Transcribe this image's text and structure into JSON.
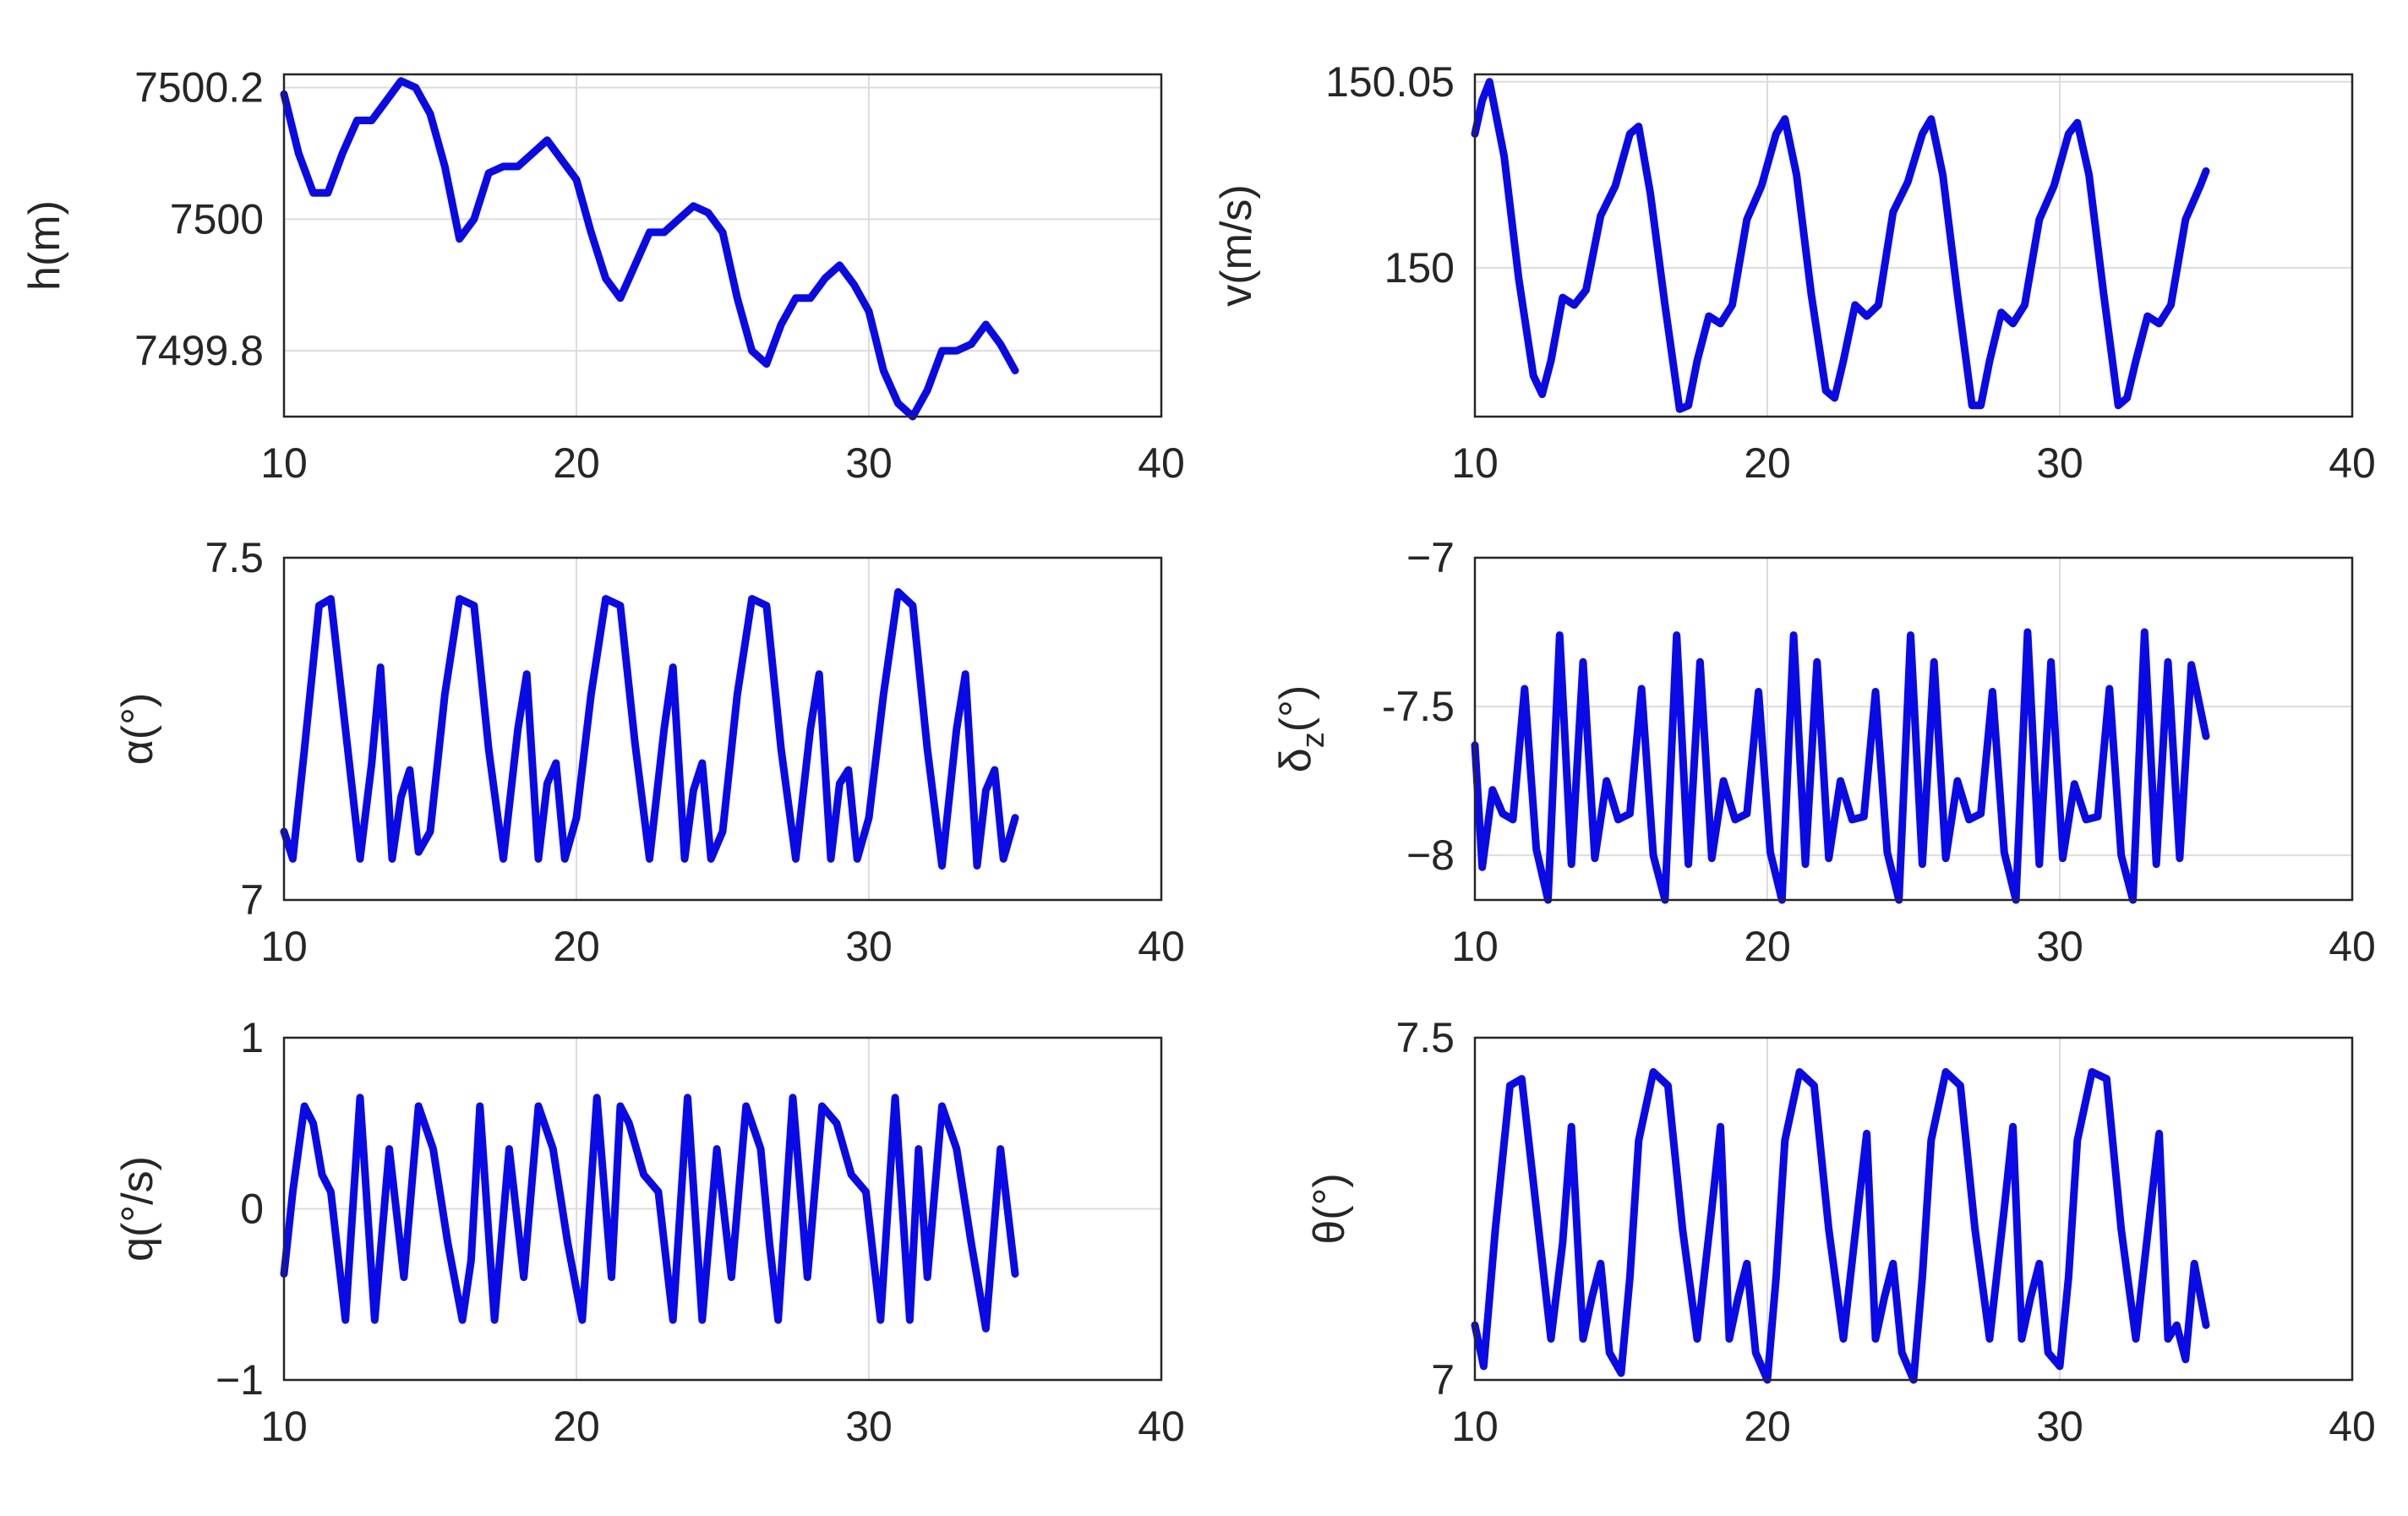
{
  "chart_data": [
    {
      "type": "line",
      "ylabel": "h(m)",
      "xlim": [
        10,
        40
      ],
      "ylim": [
        7499.7,
        7500.22
      ],
      "xticks": [
        "10",
        "20",
        "30",
        "40"
      ],
      "yticks": [
        "7499.8",
        "7500",
        "7500.2"
      ],
      "ytick_values": [
        7499.8,
        7500.0,
        7500.2
      ],
      "x": [
        10,
        10.5,
        11,
        11.5,
        12,
        12.5,
        13,
        13.5,
        14,
        14.5,
        15,
        15.5,
        16,
        16.5,
        17,
        17.5,
        18,
        18.5,
        19,
        19.5,
        20,
        20.5,
        21,
        21.5,
        22,
        22.5,
        23,
        23.5,
        24,
        24.5,
        25,
        25.5,
        26,
        26.5,
        27,
        27.5,
        28,
        28.5,
        29,
        29.5,
        30,
        30.5,
        31,
        31.5,
        32,
        32.5,
        33,
        33.5,
        34,
        34.5,
        35
      ],
      "values": [
        7500.19,
        7500.1,
        7500.04,
        7500.04,
        7500.1,
        7500.15,
        7500.15,
        7500.18,
        7500.21,
        7500.2,
        7500.16,
        7500.08,
        7499.97,
        7500.0,
        7500.07,
        7500.08,
        7500.08,
        7500.1,
        7500.12,
        7500.09,
        7500.06,
        7499.98,
        7499.91,
        7499.88,
        7499.93,
        7499.98,
        7499.98,
        7500.0,
        7500.02,
        7500.01,
        7499.98,
        7499.88,
        7499.8,
        7499.78,
        7499.84,
        7499.88,
        7499.88,
        7499.91,
        7499.93,
        7499.9,
        7499.86,
        7499.77,
        7499.72,
        7499.7,
        7499.74,
        7499.8,
        7499.8,
        7499.81,
        7499.84,
        7499.81,
        7499.77
      ]
    },
    {
      "type": "line",
      "ylabel": "v(m/s)",
      "xlim": [
        10,
        40
      ],
      "ylim": [
        149.96,
        150.052
      ],
      "xticks": [
        "10",
        "20",
        "30",
        "40"
      ],
      "yticks": [
        "150",
        "150.05"
      ],
      "ytick_values": [
        150.0,
        150.05
      ],
      "x": [
        10,
        10.25,
        10.5,
        11,
        11.5,
        12,
        12.3,
        12.6,
        13,
        13.4,
        13.8,
        14.3,
        14.8,
        15.3,
        15.6,
        16,
        16.5,
        17,
        17.3,
        17.6,
        18,
        18.4,
        18.8,
        19.3,
        19.8,
        20.3,
        20.6,
        21,
        21.5,
        22,
        22.3,
        22.6,
        23,
        23.4,
        23.8,
        24.3,
        24.8,
        25.3,
        25.6,
        26,
        26.5,
        27,
        27.3,
        27.6,
        28,
        28.4,
        28.8,
        29.3,
        29.8,
        30.3,
        30.6,
        31,
        31.5,
        32,
        32.3,
        32.6,
        33,
        33.4,
        33.8,
        34.3,
        34.8,
        35
      ],
      "values": [
        150.036,
        150.045,
        150.05,
        150.03,
        149.997,
        149.971,
        149.966,
        149.975,
        149.992,
        149.99,
        149.994,
        150.014,
        150.022,
        150.036,
        150.038,
        150.02,
        149.99,
        149.962,
        149.963,
        149.975,
        149.987,
        149.985,
        149.99,
        150.013,
        150.022,
        150.036,
        150.04,
        150.025,
        149.993,
        149.967,
        149.965,
        149.975,
        149.99,
        149.987,
        149.99,
        150.015,
        150.023,
        150.036,
        150.04,
        150.025,
        149.993,
        149.963,
        149.963,
        149.975,
        149.988,
        149.985,
        149.99,
        150.013,
        150.022,
        150.036,
        150.039,
        150.025,
        149.993,
        149.963,
        149.965,
        149.975,
        149.987,
        149.985,
        149.99,
        150.013,
        150.022,
        150.026
      ]
    },
    {
      "type": "line",
      "ylabel": "α(°)",
      "xlim": [
        10,
        40
      ],
      "ylim": [
        7,
        7.5
      ],
      "xticks": [
        "10",
        "20",
        "30",
        "40"
      ],
      "yticks": [
        "7",
        "7.5"
      ],
      "ytick_values": [
        7,
        7.5
      ],
      "x": [
        10,
        10.3,
        10.7,
        11.2,
        11.6,
        12.1,
        12.6,
        13,
        13.3,
        13.7,
        14,
        14.3,
        14.6,
        15,
        15.5,
        16,
        16.5,
        17,
        17.5,
        18,
        18.3,
        18.7,
        19,
        19.3,
        19.6,
        20,
        20.5,
        21,
        21.5,
        22,
        22.5,
        23,
        23.3,
        23.7,
        24,
        24.3,
        24.6,
        25,
        25.5,
        26,
        26.5,
        27,
        27.5,
        28,
        28.3,
        28.7,
        29,
        29.3,
        29.6,
        30,
        30.5,
        31,
        31.5,
        32,
        32.5,
        33,
        33.3,
        33.7,
        34,
        34.3,
        34.6,
        35
      ],
      "values": [
        7.1,
        7.06,
        7.22,
        7.43,
        7.44,
        7.25,
        7.06,
        7.2,
        7.34,
        7.06,
        7.15,
        7.19,
        7.07,
        7.1,
        7.3,
        7.44,
        7.43,
        7.22,
        7.06,
        7.25,
        7.33,
        7.06,
        7.17,
        7.2,
        7.06,
        7.12,
        7.3,
        7.44,
        7.43,
        7.23,
        7.06,
        7.25,
        7.34,
        7.06,
        7.16,
        7.2,
        7.06,
        7.1,
        7.3,
        7.44,
        7.43,
        7.22,
        7.06,
        7.25,
        7.33,
        7.06,
        7.17,
        7.19,
        7.06,
        7.12,
        7.3,
        7.45,
        7.43,
        7.22,
        7.05,
        7.25,
        7.33,
        7.05,
        7.16,
        7.19,
        7.06,
        7.12
      ]
    },
    {
      "type": "line",
      "ylabel": "δz(°)",
      "ylabel_main": "δ",
      "ylabel_sub": "z",
      "ylabel_tail": "(°)",
      "xlim": [
        10,
        40
      ],
      "ylim": [
        -8.15,
        -7
      ],
      "xticks": [
        "10",
        "20",
        "30",
        "40"
      ],
      "yticks": [
        "−8",
        "-7.5",
        "−7"
      ],
      "ytick_values": [
        -8,
        -7.5,
        -7
      ],
      "x": [
        10,
        10.25,
        10.6,
        10.95,
        11.3,
        11.7,
        12.1,
        12.5,
        12.9,
        13.3,
        13.7,
        14.1,
        14.5,
        14.9,
        15.3,
        15.7,
        16.1,
        16.5,
        16.9,
        17.3,
        17.7,
        18.1,
        18.5,
        18.9,
        19.3,
        19.7,
        20.1,
        20.5,
        20.9,
        21.3,
        21.7,
        22.1,
        22.5,
        22.9,
        23.3,
        23.7,
        24.1,
        24.5,
        24.9,
        25.3,
        25.7,
        26.1,
        26.5,
        26.9,
        27.3,
        27.7,
        28.1,
        28.5,
        28.9,
        29.3,
        29.7,
        30.1,
        30.5,
        30.9,
        31.3,
        31.7,
        32.1,
        32.5,
        32.9,
        33.3,
        33.7,
        34.1,
        34.5,
        35
      ],
      "values": [
        -7.63,
        -8.04,
        -7.78,
        -7.86,
        -7.88,
        -7.44,
        -7.98,
        -8.15,
        -7.26,
        -8.03,
        -7.35,
        -8.01,
        -7.75,
        -7.88,
        -7.86,
        -7.44,
        -8.0,
        -8.15,
        -7.26,
        -8.03,
        -7.35,
        -8.01,
        -7.75,
        -7.88,
        -7.86,
        -7.45,
        -7.99,
        -8.15,
        -7.26,
        -8.03,
        -7.35,
        -8.01,
        -7.75,
        -7.88,
        -7.87,
        -7.45,
        -7.99,
        -8.15,
        -7.26,
        -8.03,
        -7.35,
        -8.01,
        -7.75,
        -7.88,
        -7.86,
        -7.45,
        -7.99,
        -8.15,
        -7.25,
        -8.03,
        -7.35,
        -8.01,
        -7.76,
        -7.88,
        -7.87,
        -7.44,
        -8.0,
        -8.15,
        -7.25,
        -8.03,
        -7.35,
        -8.01,
        -7.36,
        -7.6
      ]
    },
    {
      "type": "line",
      "ylabel": "q(°/s)",
      "xlim": [
        10,
        40
      ],
      "ylim": [
        -1,
        1
      ],
      "xticks": [
        "10",
        "20",
        "30",
        "40"
      ],
      "yticks": [
        "−1",
        "0",
        "1"
      ],
      "ytick_values": [
        -1,
        0,
        1
      ],
      "x": [
        10,
        10.3,
        10.7,
        11,
        11.3,
        11.6,
        12.1,
        12.6,
        13.1,
        13.6,
        14.1,
        14.6,
        15.1,
        15.6,
        16.1,
        16.4,
        16.7,
        17.2,
        17.7,
        18.2,
        18.7,
        19.2,
        19.7,
        20.2,
        20.7,
        21.2,
        21.5,
        21.8,
        22.3,
        22.8,
        23.3,
        23.8,
        24.3,
        24.8,
        25.3,
        25.8,
        26.3,
        26.6,
        26.9,
        27.4,
        27.9,
        28.4,
        28.9,
        29.4,
        29.9,
        30.4,
        30.9,
        31.4,
        31.7,
        32,
        32.5,
        33,
        33.5,
        34,
        34.5,
        35
      ],
      "values": [
        -0.38,
        0.1,
        0.6,
        0.5,
        0.2,
        0.1,
        -0.65,
        0.65,
        -0.65,
        0.35,
        -0.4,
        0.6,
        0.35,
        -0.2,
        -0.65,
        -0.3,
        0.6,
        -0.65,
        0.35,
        -0.4,
        0.6,
        0.35,
        -0.2,
        -0.65,
        0.65,
        -0.4,
        0.6,
        0.5,
        0.2,
        0.1,
        -0.65,
        0.65,
        -0.65,
        0.35,
        -0.4,
        0.6,
        0.35,
        -0.2,
        -0.65,
        0.65,
        -0.4,
        0.6,
        0.5,
        0.2,
        0.1,
        -0.65,
        0.65,
        -0.65,
        0.35,
        -0.4,
        0.6,
        0.35,
        -0.2,
        -0.7,
        0.35,
        -0.38
      ]
    },
    {
      "type": "line",
      "ylabel": "θ(°)",
      "xlim": [
        10,
        40
      ],
      "ylim": [
        7,
        7.5
      ],
      "xticks": [
        "10",
        "20",
        "30",
        "40"
      ],
      "yticks": [
        "7",
        "7.5"
      ],
      "ytick_values": [
        7,
        7.5
      ],
      "x": [
        10,
        10.3,
        10.7,
        11.2,
        11.6,
        12.1,
        12.6,
        13,
        13.3,
        13.7,
        14,
        14.3,
        14.6,
        15,
        15.3,
        15.6,
        16.1,
        16.6,
        17.1,
        17.6,
        18.1,
        18.4,
        18.7,
        19,
        19.3,
        19.6,
        20,
        20.3,
        20.6,
        21.1,
        21.6,
        22.1,
        22.6,
        23.1,
        23.4,
        23.7,
        24,
        24.3,
        24.6,
        25,
        25.3,
        25.6,
        26.1,
        26.6,
        27.1,
        27.6,
        28.1,
        28.4,
        28.7,
        29,
        29.3,
        29.6,
        30,
        30.3,
        30.6,
        31.1,
        31.6,
        32.1,
        32.6,
        33.1,
        33.4,
        33.7,
        34,
        34.3,
        34.6,
        35
      ],
      "values": [
        7.08,
        7.02,
        7.22,
        7.43,
        7.44,
        7.25,
        7.06,
        7.2,
        7.37,
        7.06,
        7.12,
        7.17,
        7.04,
        7.01,
        7.15,
        7.35,
        7.45,
        7.43,
        7.22,
        7.06,
        7.25,
        7.37,
        7.06,
        7.12,
        7.17,
        7.04,
        7.0,
        7.15,
        7.35,
        7.45,
        7.43,
        7.22,
        7.06,
        7.25,
        7.36,
        7.06,
        7.12,
        7.17,
        7.04,
        7.0,
        7.15,
        7.35,
        7.45,
        7.43,
        7.22,
        7.06,
        7.25,
        7.37,
        7.06,
        7.12,
        7.17,
        7.04,
        7.02,
        7.15,
        7.35,
        7.45,
        7.44,
        7.22,
        7.06,
        7.25,
        7.36,
        7.06,
        7.08,
        7.03,
        7.17,
        7.08
      ]
    }
  ]
}
